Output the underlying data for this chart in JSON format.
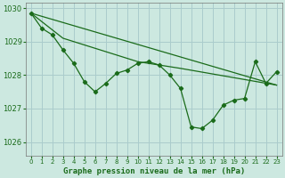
{
  "background_color": "#cce8e0",
  "grid_color": "#aacccc",
  "line_color": "#1a6b1a",
  "xlabel": "Graphe pression niveau de la mer (hPa)",
  "ylim": [
    1025.6,
    1030.15
  ],
  "xlim": [
    -0.5,
    23.5
  ],
  "yticks": [
    1026,
    1027,
    1028,
    1029,
    1030
  ],
  "xticks": [
    0,
    1,
    2,
    3,
    4,
    5,
    6,
    7,
    8,
    9,
    10,
    11,
    12,
    13,
    14,
    15,
    16,
    17,
    18,
    19,
    20,
    21,
    22,
    23
  ],
  "series1_x": [
    0,
    1,
    2,
    3,
    4,
    5,
    6,
    7,
    8,
    9,
    10,
    11,
    12,
    13,
    14,
    15,
    16,
    17,
    18,
    19,
    20,
    21,
    22,
    23
  ],
  "series1_y": [
    1029.85,
    1029.4,
    1029.2,
    1028.75,
    1028.35,
    1027.8,
    1027.5,
    1027.75,
    1028.05,
    1028.15,
    1028.35,
    1028.4,
    1028.3,
    1028.0,
    1027.6,
    1026.45,
    1026.4,
    1026.65,
    1027.1,
    1027.25,
    1027.3,
    1028.4,
    1027.75,
    1028.1
  ],
  "series2_x": [
    0,
    3,
    10,
    14,
    23
  ],
  "series2_y": [
    1029.85,
    1029.1,
    1028.4,
    1028.2,
    1027.7
  ],
  "series3_x": [
    0,
    23
  ],
  "series3_y": [
    1029.85,
    1027.7
  ]
}
